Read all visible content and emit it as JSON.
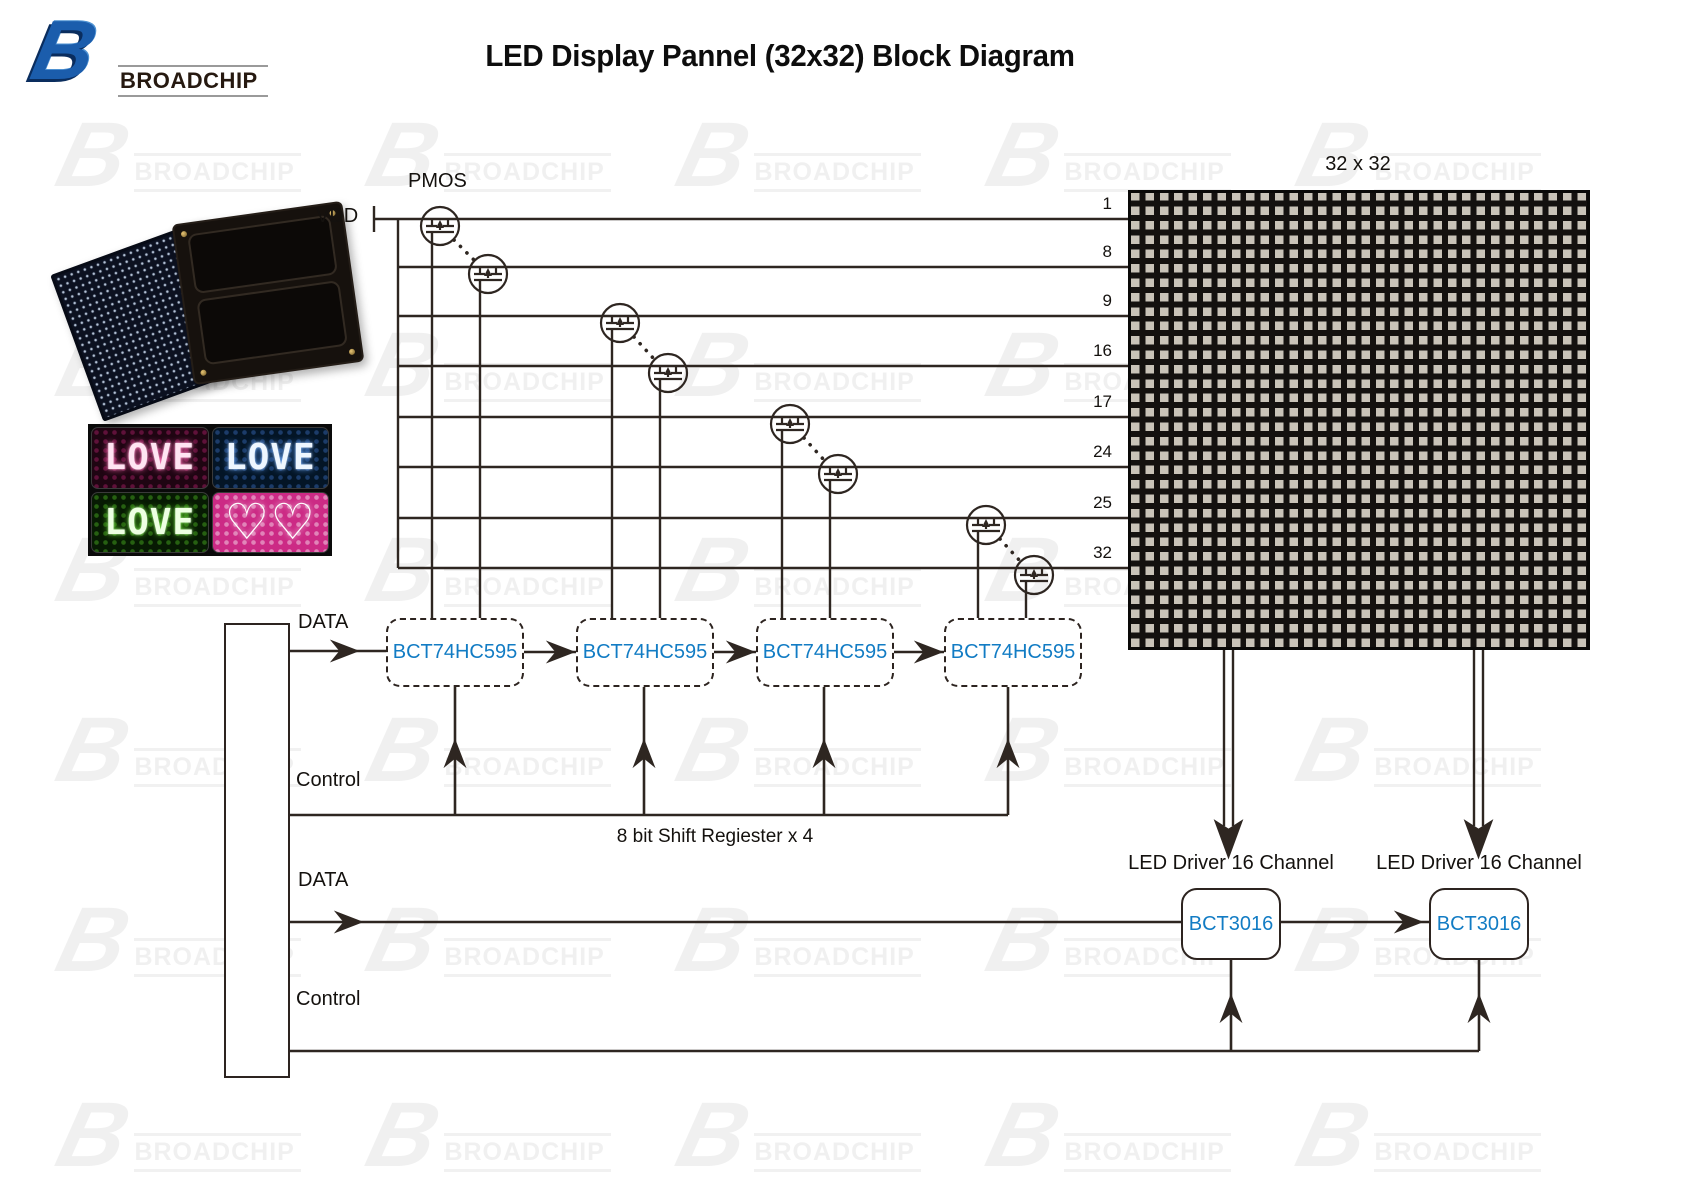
{
  "logo": {
    "b": "B",
    "name": "BROADCHIP"
  },
  "title": "LED Display Pannel (32x32) Block Diagram",
  "watermark": {
    "b": "B",
    "text": "BROADCHIP"
  },
  "diagram": {
    "pmos_label": "PMOS",
    "vdd_label": "VDD",
    "matrix_label": "32 x 32",
    "row_numbers": [
      "1",
      "8",
      "9",
      "16",
      "17",
      "24",
      "25",
      "32"
    ],
    "shift_registers": [
      "BCT74HC595",
      "BCT74HC595",
      "BCT74HC595",
      "BCT74HC595"
    ],
    "shift_register_note": "8 bit Shift Regiester  x 4",
    "bus_labels": {
      "data1": "DATA",
      "control1": "Control",
      "data2": "DATA",
      "control2": "Control"
    },
    "drivers": [
      {
        "label": "LED Driver 16 Channel",
        "chip": "BCT3016"
      },
      {
        "label": "LED Driver 16 Channel",
        "chip": "BCT3016"
      }
    ]
  },
  "photos": {
    "love_tiles": [
      {
        "text": "LOVE",
        "theme": "pink",
        "glow": "#ff5fae"
      },
      {
        "text": "LOVE",
        "theme": "blue",
        "glow": "#4e8fe6"
      },
      {
        "text": "LOVE",
        "theme": "green",
        "glow": "#55cc22"
      },
      {
        "text": "♡♡",
        "theme": "hearts",
        "glow": "#ffffff"
      }
    ]
  },
  "colors": {
    "accent_blue": "#127cc4",
    "line": "#2d2420",
    "logo_blue": "#1b5dac"
  }
}
